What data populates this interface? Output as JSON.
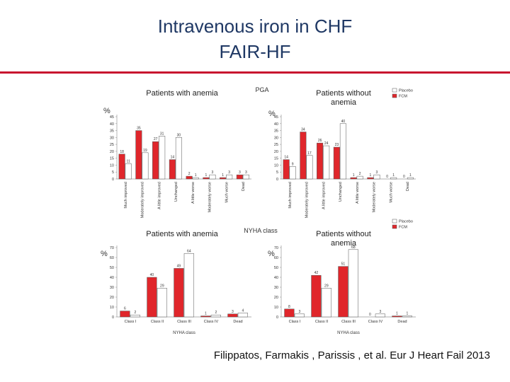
{
  "header": {
    "title": "Intravenous iron in CHF",
    "subtitle": "FAIR-HF"
  },
  "labels": {
    "top": "PGA",
    "bottom": "NYHA class"
  },
  "chart_data": [
    {
      "type": "bar",
      "title": "Patients with anemia",
      "ylabel": "%",
      "legend": false,
      "categories": [
        "Much improved",
        "Moderately improved",
        "A little improved",
        "Unchanged",
        "A little worse",
        "Moderately worse",
        "Much worse",
        "Dead"
      ],
      "series": [
        {
          "name": "FCM",
          "color": "#e0262b",
          "values": [
            18,
            35,
            27,
            14,
            2,
            1,
            1,
            3
          ]
        },
        {
          "name": "Placebo",
          "color": "#ffffff",
          "values": [
            11,
            19,
            31,
            30,
            1,
            3,
            3,
            3
          ]
        }
      ],
      "ylim": [
        0,
        45
      ],
      "yticks": [
        0,
        5,
        10,
        15,
        20,
        25,
        30,
        35,
        40,
        45
      ]
    },
    {
      "type": "bar",
      "title": "Patients without anemia",
      "ylabel": "%",
      "legend": true,
      "categories": [
        "Much improved",
        "Moderately improved",
        "A little improved",
        "Unchanged",
        "A little worse",
        "Moderately worse",
        "Much worse",
        "Dead"
      ],
      "series": [
        {
          "name": "FCM",
          "color": "#e0262b",
          "values": [
            14,
            34,
            26,
            23,
            1,
            1,
            0,
            0
          ]
        },
        {
          "name": "Placebo",
          "color": "#ffffff",
          "values": [
            9,
            17,
            24,
            40,
            2,
            3,
            1,
            1
          ]
        }
      ],
      "ylim": [
        0,
        45
      ],
      "yticks": [
        0,
        5,
        10,
        15,
        20,
        25,
        30,
        35,
        40,
        45
      ]
    },
    {
      "type": "bar",
      "title": "Patients with anemia",
      "ylabel": "%",
      "xlabel": "NYHA class",
      "legend": false,
      "categories": [
        "Class I",
        "Class II",
        "Class III",
        "Class IV",
        "Dead"
      ],
      "series": [
        {
          "name": "FCM",
          "color": "#e0262b",
          "values": [
            6,
            40,
            49,
            1,
            3
          ]
        },
        {
          "name": "Placebo",
          "color": "#ffffff",
          "values": [
            2,
            29,
            64,
            2,
            4
          ]
        }
      ],
      "ylim": [
        0,
        70
      ],
      "yticks": [
        0,
        10,
        20,
        30,
        40,
        50,
        60,
        70
      ]
    },
    {
      "type": "bar",
      "title": "Patients without anemia",
      "ylabel": "%",
      "xlabel": "NYHA class",
      "legend": true,
      "categories": [
        "Class I",
        "Class II",
        "Class III",
        "Class IV",
        "Dead"
      ],
      "series": [
        {
          "name": "FCM",
          "color": "#e0262b",
          "values": [
            8,
            42,
            51,
            0,
            1
          ]
        },
        {
          "name": "Placebo",
          "color": "#ffffff",
          "values": [
            3,
            29,
            68,
            3,
            1
          ]
        }
      ],
      "ylim": [
        0,
        70
      ],
      "yticks": [
        0,
        10,
        20,
        30,
        40,
        50,
        60,
        70
      ]
    }
  ],
  "citation": "Filippatos, Farmakis , Parissis , et al. Eur J Heart Fail 2013"
}
